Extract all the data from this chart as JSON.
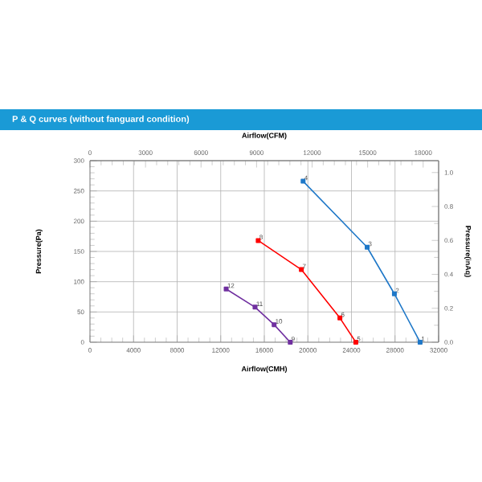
{
  "chart_data": {
    "type": "line",
    "title": "P & Q curves (without fanguard condition)",
    "xlabel": "Airflow(CMH)",
    "ylabel": "Pressure(Pa)",
    "x2label": "Airflow(CFM)",
    "y2label": "Pressure(inAq)",
    "xlim": [
      0,
      32000
    ],
    "xticks": [
      0,
      4000,
      8000,
      12000,
      16000,
      20000,
      24000,
      28000,
      32000
    ],
    "ylim": [
      0,
      300
    ],
    "yticks": [
      0,
      50,
      100,
      150,
      200,
      250,
      300
    ],
    "x2lim": [
      0,
      18835
    ],
    "x2ticks": [
      0,
      3000,
      6000,
      9000,
      12000,
      15000,
      18000
    ],
    "y2lim": [
      0,
      1.07
    ],
    "y2ticks": [
      {
        "value": 0,
        "label": "0.0"
      },
      {
        "value": 0.2,
        "label": "0.2"
      },
      {
        "value": 0.4,
        "label": "0.4"
      },
      {
        "value": 0.6,
        "label": "0.6"
      },
      {
        "value": 0.8,
        "label": "0.8"
      },
      {
        "value": 1.0,
        "label": "1.0"
      }
    ],
    "grid": true,
    "marker": "square",
    "line_style": "solid",
    "series": [
      {
        "color": "#1f78c8",
        "x": [
          30300,
          27940,
          25440,
          19560
        ],
        "values": [
          0,
          80,
          157,
          266
        ]
      },
      {
        "color": "#ff0000",
        "x": [
          24400,
          22940,
          19400,
          15440
        ],
        "values": [
          0,
          40,
          120,
          168
        ]
      },
      {
        "color": "#7030a0",
        "x": [
          18380,
          16900,
          15150,
          12500
        ],
        "values": [
          0,
          29,
          58,
          88
        ]
      }
    ],
    "annotations": [
      {
        "text": "1",
        "x": 30300,
        "y": 0
      },
      {
        "text": "2",
        "x": 27940,
        "y": 80
      },
      {
        "text": "3",
        "x": 25440,
        "y": 157
      },
      {
        "text": "4",
        "x": 19560,
        "y": 266
      },
      {
        "text": "5",
        "x": 24400,
        "y": 0
      },
      {
        "text": "6",
        "x": 22940,
        "y": 40
      },
      {
        "text": "7",
        "x": 19400,
        "y": 120
      },
      {
        "text": "8",
        "x": 15440,
        "y": 168
      },
      {
        "text": "9",
        "x": 18380,
        "y": 0
      },
      {
        "text": "10",
        "x": 16900,
        "y": 29
      },
      {
        "text": "11",
        "x": 15150,
        "y": 58
      },
      {
        "text": "12",
        "x": 12500,
        "y": 88
      }
    ]
  }
}
